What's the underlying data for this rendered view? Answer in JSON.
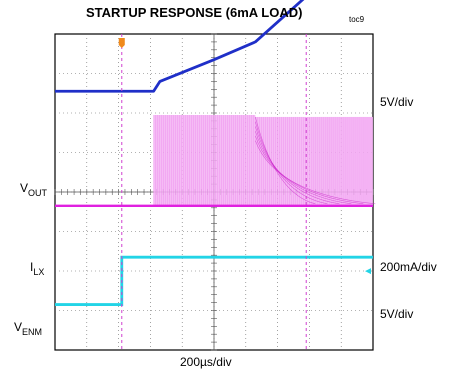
{
  "chart_data": {
    "type": "line",
    "title": "STARTUP RESPONSE (6mA LOAD)",
    "figure_id": "toc9",
    "xlabel": "200µs/div",
    "grid": true,
    "x_divisions": 10,
    "y_divisions": 8,
    "time_per_div_us": 200,
    "channel_labels": [
      {
        "main": "V",
        "sub": "OUT"
      },
      {
        "main": "I",
        "sub": "LX"
      },
      {
        "main": "V",
        "sub": "ENM"
      }
    ],
    "scale_labels": [
      "5V/div",
      "200mA/div",
      "5V/div"
    ],
    "series": [
      {
        "name": "VOUT",
        "color": "#1f2fc8",
        "x_div": [
          0,
          3.1,
          3.3,
          5.0,
          6.3,
          7.9,
          8.3,
          10
        ],
        "y_div": [
          2.55,
          2.55,
          2.8,
          3.35,
          3.8,
          4.95,
          5.05,
          5.05
        ]
      },
      {
        "name": "ILX",
        "color": "#e020e0",
        "x_div": [
          0,
          3.1,
          3.1,
          6.3,
          6.3,
          10
        ],
        "y_div": [
          -0.35,
          -0.35,
          -0.35,
          -0.35,
          -0.35,
          -0.35
        ],
        "switching_envelope": [
          {
            "x_start": 3.1,
            "x_end": 6.3,
            "top": 1.95,
            "bottom": -0.35
          },
          {
            "x_start": 6.3,
            "x_end": 10,
            "top": 1.9,
            "bottom": -0.35
          }
        ]
      },
      {
        "name": "VENM",
        "color": "#22d4e6",
        "x_div": [
          0,
          2.1,
          2.1,
          10
        ],
        "y_div": [
          -2.85,
          -2.85,
          -1.65,
          -1.65
        ]
      }
    ]
  }
}
